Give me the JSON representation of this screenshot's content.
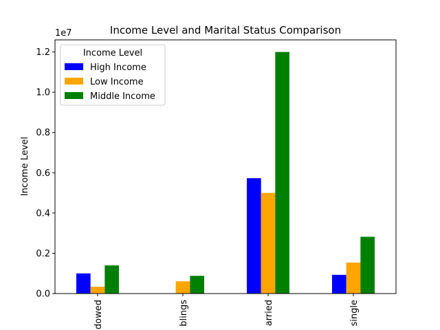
{
  "chart_data": {
    "type": "bar",
    "title": "Income Level and Marital Status Comparison",
    "xlabel": "",
    "ylabel": "Income Level",
    "offset_label": "1e7",
    "categories": [
      "idowed",
      "blings",
      "arried",
      "single"
    ],
    "series": [
      {
        "name": "High Income",
        "color": "#0000ff",
        "values": [
          1000000,
          0,
          5730000,
          930000
        ]
      },
      {
        "name": "Low Income",
        "color": "#ffa500",
        "values": [
          340000,
          610000,
          5000000,
          1540000
        ]
      },
      {
        "name": "Middle Income",
        "color": "#008000",
        "values": [
          1400000,
          880000,
          12000000,
          2820000
        ]
      }
    ],
    "yticks": [
      0,
      2000000,
      4000000,
      6000000,
      8000000,
      10000000,
      12000000
    ],
    "ytick_labels": [
      "0.0",
      "0.2",
      "0.4",
      "0.6",
      "0.8",
      "1.0",
      "1.2"
    ],
    "ylim": [
      0,
      12600000
    ],
    "legend": {
      "title": "Income Level",
      "position": "top-left"
    },
    "grid": false
  }
}
